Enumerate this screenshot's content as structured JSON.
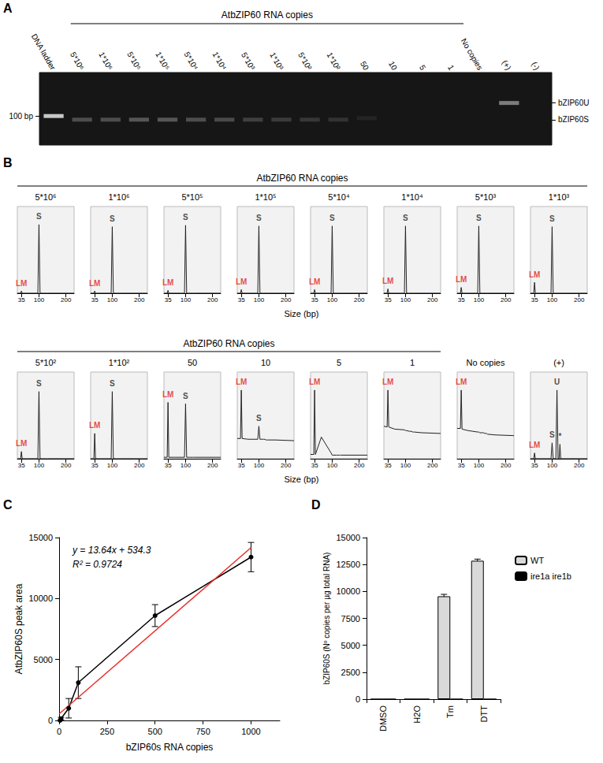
{
  "chart_data": [
    {
      "type": "gel",
      "title": "A",
      "color": "#ffffff",
      "categories": [
        "DNA ladder",
        "5*10⁶",
        "1*10⁶",
        "5*10⁵",
        "1*10⁵",
        "5*10⁴",
        "1*10⁴",
        "5*10³",
        "1*10³",
        "5*10²",
        "1*10²",
        "50",
        "10",
        "5",
        "1",
        "No copies",
        "(+)",
        "(-)"
      ],
      "groups": [
        {
          "label": "AtbZIP60 RNA copies",
          "from": "5*10⁶",
          "to": "1"
        }
      ],
      "ylim": [
        60,
        160
      ],
      "yticks": [
        {
          "value": 100,
          "label": "100 bp"
        }
      ],
      "band_labels": [
        {
          "value": 118,
          "label": "bZIP60U"
        },
        {
          "value": 95,
          "label": "bZIP60S"
        }
      ],
      "bands": {
        "lanes": [
          "DNA ladder",
          "5*10⁶",
          "1*10⁶",
          "5*10⁵",
          "1*10⁵",
          "5*10⁴",
          "1*10⁴",
          "5*10³",
          "1*10³",
          "5*10²",
          "1*10²",
          "50",
          "(+)"
        ],
        "bp": [
          100,
          95,
          95,
          95,
          95,
          95,
          95,
          95,
          95,
          95,
          95,
          97,
          118
        ],
        "intensity": [
          0.95,
          0.3,
          0.3,
          0.35,
          0.35,
          0.3,
          0.28,
          0.22,
          0.2,
          0.18,
          0.15,
          0.08,
          0.55
        ]
      }
    },
    {
      "type": "electropherogram",
      "title": "B",
      "xlabel": "Size (bp)",
      "color": "#222222",
      "xlim": [
        20,
        230
      ],
      "xticks": [
        35,
        100,
        200
      ],
      "ylim": [
        0,
        120
      ],
      "tick_labels": "x",
      "grid": false,
      "x": [
        20,
        32,
        35,
        38,
        60,
        96,
        100,
        104,
        114,
        118,
        122,
        126,
        129,
        132,
        160,
        230
      ],
      "groups": [
        {
          "label": "AtbZIP60 RNA copies",
          "from": "5*10⁶",
          "to": "1*10³"
        },
        {
          "label": "AtbZIP60 RNA copies",
          "from": "5*10²",
          "to": "1"
        }
      ],
      "panels": [
        {
          "title": "5*10⁶",
          "values": [
            0,
            0,
            3,
            0,
            0,
            0,
            95,
            0,
            0,
            0,
            0,
            0,
            0,
            0,
            0,
            0
          ],
          "peaks": [
            {
              "label": "LM",
              "x": 35,
              "color": "#e0201b"
            },
            {
              "label": "S",
              "x": 100
            }
          ]
        },
        {
          "title": "1*10⁶",
          "values": [
            0,
            0,
            3,
            0,
            0,
            0,
            92,
            0,
            0,
            0,
            0,
            0,
            0,
            0,
            0,
            0
          ],
          "peaks": [
            {
              "label": "LM",
              "x": 35,
              "color": "#e0201b"
            },
            {
              "label": "S",
              "x": 100
            }
          ]
        },
        {
          "title": "5*10⁵",
          "values": [
            0,
            0,
            4,
            0,
            0,
            0,
            94,
            0,
            0,
            0,
            0,
            0,
            0,
            0,
            0,
            0
          ],
          "peaks": [
            {
              "label": "LM",
              "x": 35,
              "color": "#e0201b"
            },
            {
              "label": "S",
              "x": 100
            }
          ]
        },
        {
          "title": "1*10⁵",
          "values": [
            0,
            0,
            5,
            0,
            0,
            0,
            93,
            0,
            0,
            0,
            0,
            0,
            0,
            0,
            0,
            0
          ],
          "peaks": [
            {
              "label": "LM",
              "x": 35,
              "color": "#e0201b"
            },
            {
              "label": "S",
              "x": 100
            }
          ]
        },
        {
          "title": "5*10⁴",
          "values": [
            0,
            0,
            5,
            0,
            0,
            0,
            93,
            0,
            0,
            0,
            0,
            0,
            0,
            0,
            0,
            0
          ],
          "peaks": [
            {
              "label": "LM",
              "x": 35,
              "color": "#e0201b"
            },
            {
              "label": "S",
              "x": 100
            }
          ]
        },
        {
          "title": "1*10⁴",
          "values": [
            0,
            0,
            6,
            0,
            0,
            0,
            93,
            0,
            0,
            0,
            0,
            0,
            0,
            0,
            0,
            0
          ],
          "peaks": [
            {
              "label": "LM",
              "x": 35,
              "color": "#e0201b"
            },
            {
              "label": "S",
              "x": 100
            }
          ]
        },
        {
          "title": "5*10³",
          "values": [
            0,
            0,
            8,
            0,
            0,
            0,
            93,
            0,
            0,
            0,
            0,
            0,
            0,
            0,
            0,
            0
          ],
          "peaks": [
            {
              "label": "LM",
              "x": 35,
              "color": "#e0201b"
            },
            {
              "label": "S",
              "x": 100
            }
          ]
        },
        {
          "title": "1*10³",
          "values": [
            0,
            0,
            15,
            0,
            0,
            0,
            92,
            0,
            0,
            0,
            0,
            0,
            0,
            0,
            0,
            0
          ],
          "peaks": [
            {
              "label": "LM",
              "x": 35,
              "color": "#e0201b"
            },
            {
              "label": "S",
              "x": 100
            }
          ]
        },
        {
          "title": "5*10²",
          "values": [
            0,
            0,
            10,
            0,
            0,
            0,
            93,
            0,
            0,
            0,
            0,
            0,
            0,
            0,
            0,
            0
          ],
          "peaks": [
            {
              "label": "LM",
              "x": 35,
              "color": "#e0201b"
            },
            {
              "label": "S",
              "x": 100
            }
          ]
        },
        {
          "title": "1*10²",
          "values": [
            0,
            0,
            35,
            0,
            0,
            0,
            93,
            0,
            0,
            0,
            0,
            0,
            0,
            0,
            0,
            0
          ],
          "peaks": [
            {
              "label": "LM",
              "x": 35,
              "color": "#e0201b"
            },
            {
              "label": "S",
              "x": 100
            }
          ]
        },
        {
          "title": "50",
          "values": [
            2,
            2,
            78,
            2,
            2,
            2,
            76,
            2,
            2,
            2,
            2,
            2,
            2,
            2,
            2,
            2
          ],
          "peaks": [
            {
              "label": "LM",
              "x": 35,
              "color": "#e0201b"
            },
            {
              "label": "S",
              "x": 100
            }
          ]
        },
        {
          "title": "10",
          "values": [
            28,
            28,
            95,
            28,
            27,
            27,
            45,
            27,
            27,
            27,
            27,
            26,
            26,
            26,
            26,
            25
          ],
          "peaks": [
            {
              "label": "LM",
              "x": 35,
              "color": "#e0201b"
            },
            {
              "label": "S",
              "x": 100
            }
          ]
        },
        {
          "title": "5",
          "values": [
            6,
            6,
            95,
            6,
            30,
            8,
            5,
            5,
            5,
            5,
            5,
            5,
            5,
            5,
            5,
            5
          ],
          "peaks": [
            {
              "label": "LM",
              "x": 35,
              "color": "#e0201b"
            }
          ]
        },
        {
          "title": "1",
          "values": [
            45,
            44,
            95,
            44,
            41,
            40,
            39,
            39,
            38,
            38,
            38,
            37,
            37,
            37,
            36,
            35
          ],
          "peaks": [
            {
              "label": "LM",
              "x": 35,
              "color": "#e0201b"
            }
          ]
        },
        {
          "title": "No copies",
          "values": [
            42,
            42,
            95,
            41,
            39,
            37,
            37,
            36,
            36,
            36,
            35,
            35,
            35,
            34,
            33,
            32
          ],
          "peaks": [
            {
              "label": "LM",
              "x": 35,
              "color": "#e0201b"
            }
          ]
        },
        {
          "title": "(+)",
          "values": [
            0,
            0,
            8,
            0,
            0,
            0,
            22,
            0,
            0,
            95,
            0,
            0,
            20,
            0,
            0,
            0
          ],
          "peaks": [
            {
              "label": "LM",
              "x": 35,
              "color": "#e0201b"
            },
            {
              "label": "S",
              "x": 100
            },
            {
              "label": "U",
              "x": 118
            },
            {
              "label": "*",
              "x": 129
            }
          ]
        }
      ]
    },
    {
      "type": "line",
      "title": "C",
      "xlabel": "bZIP60s RNA copies",
      "ylabel": "AtbZIP60S peak area",
      "xlim": [
        0,
        1150
      ],
      "xticks": [
        0,
        250,
        500,
        750,
        1000
      ],
      "ylim": [
        0,
        15000
      ],
      "yticks": [
        0,
        5000,
        10000,
        15000
      ],
      "grid": false,
      "annotations": [
        "y = 13.64x + 534.3",
        "R² = 0.9724"
      ],
      "series": [
        {
          "type": "line",
          "color": "#000000",
          "marker": "circle",
          "x": [
            5,
            10,
            50,
            100,
            500,
            1000
          ],
          "values": [
            0,
            150,
            1000,
            3100,
            8600,
            13400
          ],
          "errors": [
            0,
            100,
            800,
            1300,
            900,
            1200
          ]
        },
        {
          "type": "line",
          "color": "#e8302a",
          "marker": "none",
          "x": [
            0,
            1000
          ],
          "values": [
            534.3,
            14174.3
          ]
        }
      ]
    },
    {
      "type": "bar",
      "title": "D",
      "ylabel": "bZIP60S (Nº copies per µg total RNA)",
      "categories": [
        "DMSO",
        "H2O",
        "Tm",
        "DTT"
      ],
      "ylim": [
        0,
        15000
      ],
      "yticks": [
        0,
        2500,
        5000,
        7500,
        10000,
        12500,
        15000
      ],
      "grid": false,
      "legend": "right",
      "series": [
        {
          "name": "WT",
          "color": "#d9d9d9",
          "values": [
            0,
            0,
            9550,
            12850
          ],
          "errors": [
            0,
            0,
            180,
            150
          ]
        },
        {
          "name": "ire1a ire1b",
          "color": "#000000",
          "values": [
            0,
            0,
            0,
            0
          ],
          "errors": [
            0,
            0,
            0,
            0
          ]
        }
      ]
    }
  ]
}
